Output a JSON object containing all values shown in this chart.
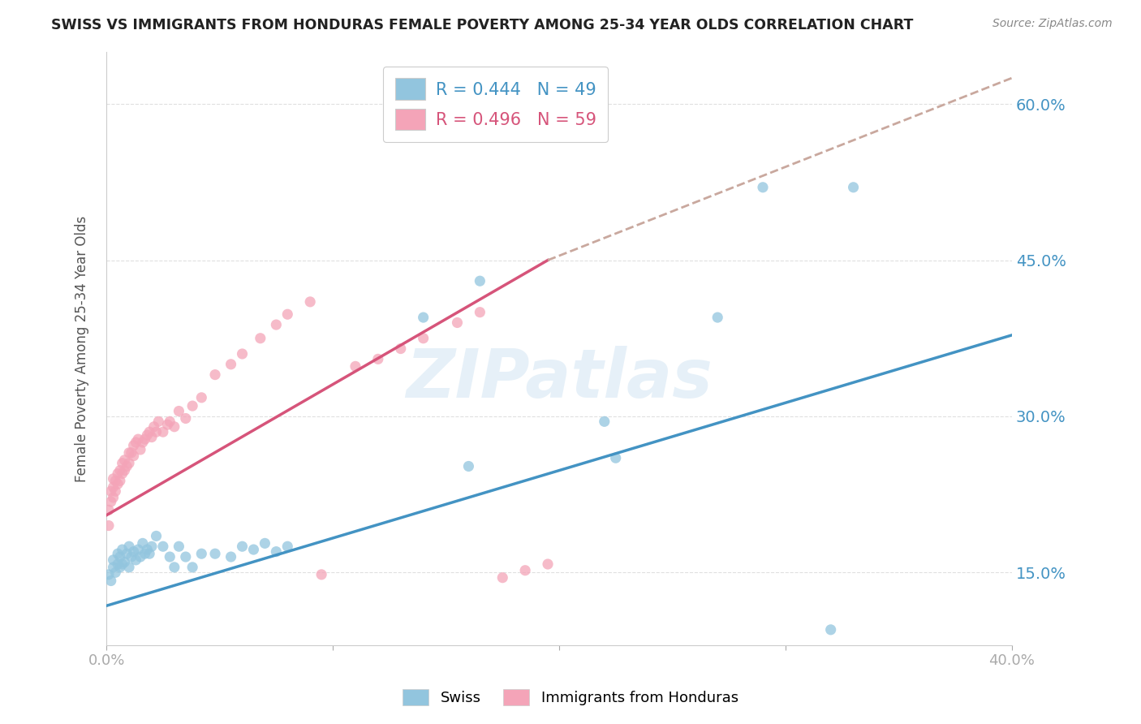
{
  "title": "SWISS VS IMMIGRANTS FROM HONDURAS FEMALE POVERTY AMONG 25-34 YEAR OLDS CORRELATION CHART",
  "source": "Source: ZipAtlas.com",
  "ylabel": "Female Poverty Among 25-34 Year Olds",
  "xlim": [
    0.0,
    0.4
  ],
  "ylim": [
    0.08,
    0.65
  ],
  "yticks": [
    0.15,
    0.3,
    0.45,
    0.6
  ],
  "ytick_labels": [
    "15.0%",
    "30.0%",
    "45.0%",
    "60.0%"
  ],
  "blue_color": "#92c5de",
  "pink_color": "#f4a4b8",
  "blue_line_color": "#4393c3",
  "pink_line_color": "#d6547a",
  "dashed_line_color": "#c9a89e",
  "watermark": "ZIPatlas",
  "legend_blue_r": "R = 0.444",
  "legend_blue_n": "N = 49",
  "legend_pink_r": "R = 0.496",
  "legend_pink_n": "N = 59",
  "legend_label_blue": "Swiss",
  "legend_label_pink": "Immigrants from Honduras",
  "swiss_x": [
    0.001,
    0.002,
    0.003,
    0.003,
    0.004,
    0.005,
    0.005,
    0.006,
    0.006,
    0.007,
    0.007,
    0.008,
    0.009,
    0.01,
    0.01,
    0.011,
    0.012,
    0.013,
    0.014,
    0.015,
    0.016,
    0.017,
    0.018,
    0.019,
    0.02,
    0.022,
    0.025,
    0.028,
    0.03,
    0.032,
    0.035,
    0.038,
    0.042,
    0.048,
    0.055,
    0.06,
    0.065,
    0.07,
    0.075,
    0.08,
    0.14,
    0.16,
    0.165,
    0.22,
    0.225,
    0.27,
    0.29,
    0.32,
    0.33
  ],
  "swiss_y": [
    0.148,
    0.142,
    0.155,
    0.162,
    0.15,
    0.158,
    0.168,
    0.155,
    0.165,
    0.158,
    0.172,
    0.16,
    0.168,
    0.155,
    0.175,
    0.165,
    0.17,
    0.162,
    0.172,
    0.165,
    0.178,
    0.168,
    0.172,
    0.168,
    0.175,
    0.185,
    0.175,
    0.165,
    0.155,
    0.175,
    0.165,
    0.155,
    0.168,
    0.168,
    0.165,
    0.175,
    0.172,
    0.178,
    0.17,
    0.175,
    0.395,
    0.252,
    0.43,
    0.295,
    0.26,
    0.395,
    0.52,
    0.095,
    0.52
  ],
  "honduras_x": [
    0.001,
    0.001,
    0.002,
    0.002,
    0.003,
    0.003,
    0.003,
    0.004,
    0.004,
    0.005,
    0.005,
    0.006,
    0.006,
    0.007,
    0.007,
    0.008,
    0.008,
    0.009,
    0.01,
    0.01,
    0.011,
    0.012,
    0.012,
    0.013,
    0.014,
    0.015,
    0.016,
    0.017,
    0.018,
    0.019,
    0.02,
    0.021,
    0.022,
    0.023,
    0.025,
    0.027,
    0.028,
    0.03,
    0.032,
    0.035,
    0.038,
    0.042,
    0.048,
    0.055,
    0.06,
    0.068,
    0.075,
    0.08,
    0.09,
    0.095,
    0.11,
    0.12,
    0.13,
    0.14,
    0.155,
    0.165,
    0.175,
    0.185,
    0.195
  ],
  "honduras_y": [
    0.195,
    0.21,
    0.218,
    0.228,
    0.222,
    0.232,
    0.24,
    0.228,
    0.238,
    0.235,
    0.245,
    0.238,
    0.248,
    0.245,
    0.255,
    0.248,
    0.258,
    0.252,
    0.255,
    0.265,
    0.265,
    0.262,
    0.272,
    0.275,
    0.278,
    0.268,
    0.275,
    0.278,
    0.282,
    0.285,
    0.28,
    0.29,
    0.285,
    0.295,
    0.285,
    0.292,
    0.295,
    0.29,
    0.305,
    0.298,
    0.31,
    0.318,
    0.34,
    0.35,
    0.36,
    0.375,
    0.388,
    0.398,
    0.41,
    0.148,
    0.348,
    0.355,
    0.365,
    0.375,
    0.39,
    0.4,
    0.145,
    0.152,
    0.158
  ],
  "blue_trend_x": [
    0.0,
    0.4
  ],
  "blue_trend_y": [
    0.118,
    0.378
  ],
  "pink_trend_x": [
    0.0,
    0.195
  ],
  "pink_trend_y": [
    0.205,
    0.45
  ],
  "dashed_trend_x": [
    0.195,
    0.4
  ],
  "dashed_trend_y": [
    0.45,
    0.625
  ],
  "background_color": "#ffffff",
  "grid_color": "#e0e0e0"
}
